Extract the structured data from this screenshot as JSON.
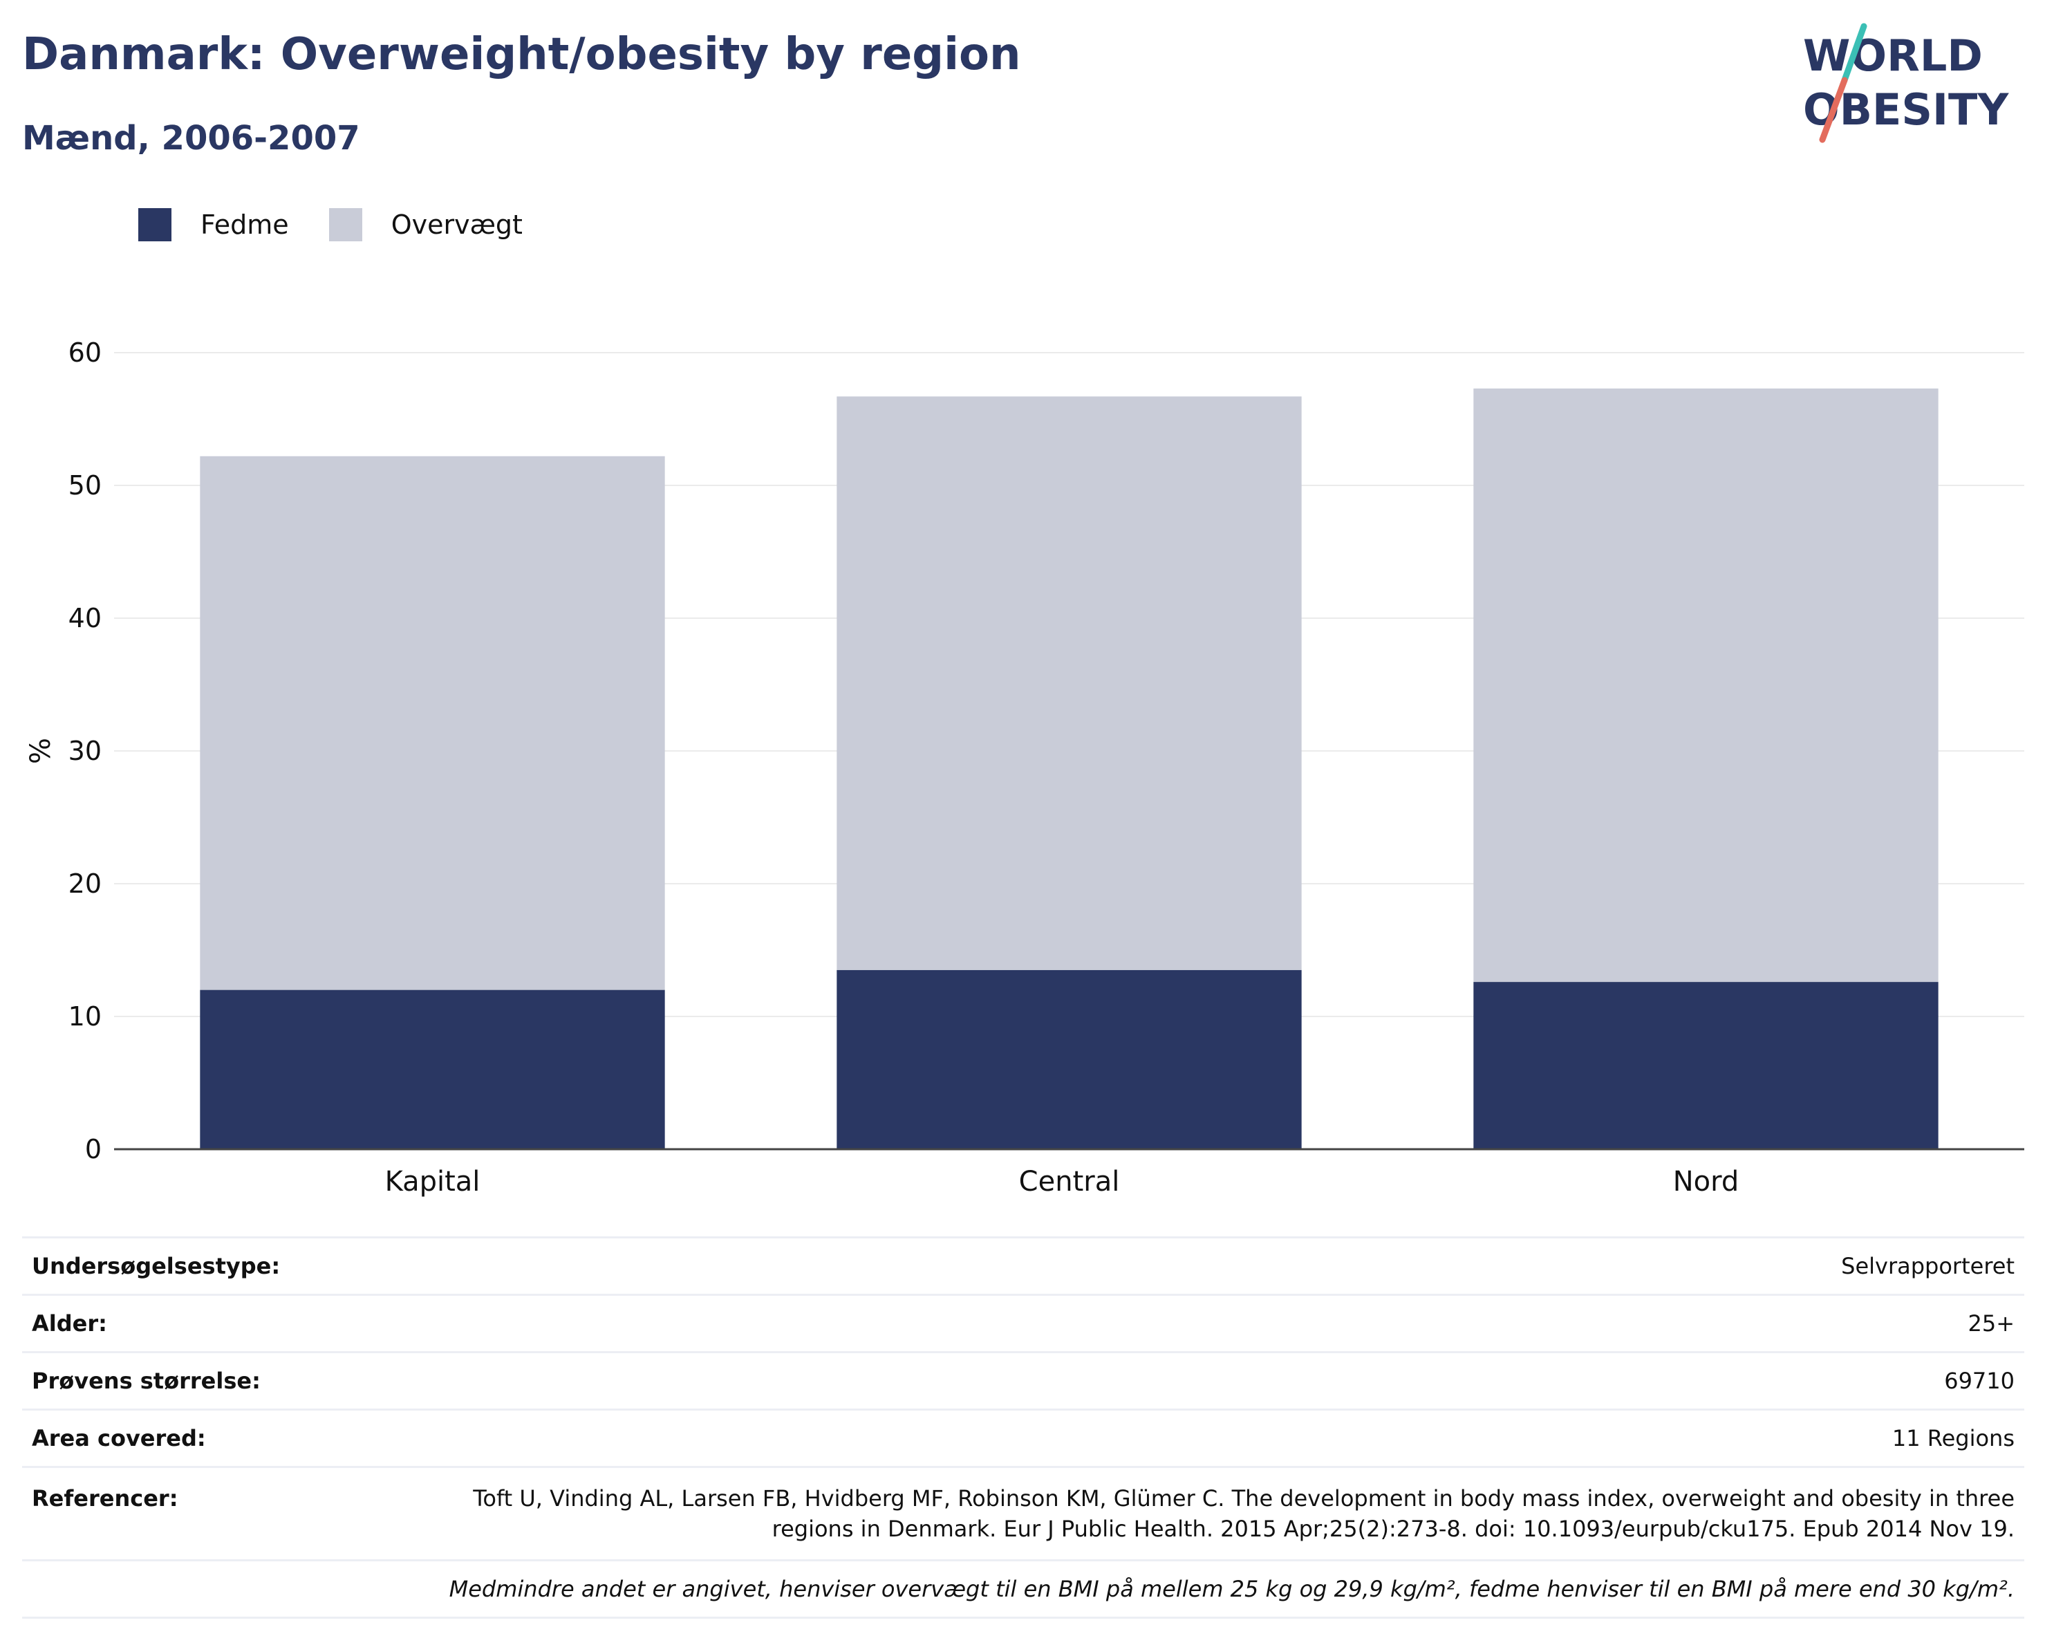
{
  "header": {
    "title": "Danmark: Overweight/obesity by region",
    "subtitle": "Mænd, 2006-2007"
  },
  "logo": {
    "line1": "WORLD",
    "line2": "OBESITY"
  },
  "chart_data": {
    "type": "bar",
    "stacked": true,
    "categories": [
      "Kapital",
      "Central",
      "Nord"
    ],
    "series": [
      {
        "name": "Fedme",
        "values": [
          12.0,
          13.5,
          12.6
        ],
        "color": "#2a3763"
      },
      {
        "name": "Overvægt",
        "values": [
          40.2,
          43.2,
          44.7
        ],
        "color": "#c9ccd8"
      }
    ],
    "ylabel": "%",
    "ylim": [
      0,
      60
    ],
    "yticks": [
      0,
      10,
      20,
      30,
      40,
      50,
      60
    ],
    "grid": true,
    "legend_position": "top-left"
  },
  "info": {
    "rows": [
      {
        "label": "Undersøgelsestype:",
        "value": "Selvrapporteret"
      },
      {
        "label": "Alder:",
        "value": "25+"
      },
      {
        "label": "Prøvens størrelse:",
        "value": "69710"
      },
      {
        "label": "Area covered:",
        "value": "11 Regions"
      }
    ],
    "reference": {
      "label": "Referencer:",
      "value": "Toft U, Vinding AL, Larsen FB, Hvidberg MF, Robinson KM, Glümer C. The development in body mass index, overweight and obesity in three regions in Denmark. Eur J Public Health. 2015 Apr;25(2):273-8. doi: 10.1093/eurpub/cku175. Epub 2014 Nov 19."
    },
    "note": "Medmindre andet er angivet, henviser overvægt til en BMI på mellem 25 kg og 29,9 kg/m², fedme henviser til en BMI på mere end 30 kg/m²."
  }
}
